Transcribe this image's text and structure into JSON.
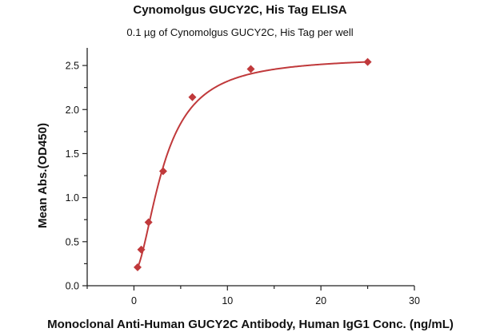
{
  "chart_data": {
    "type": "scatter",
    "title": "Cynomolgus GUCY2C, His Tag ELISA",
    "subtitle": "0.1 µg of Cynomolgus GUCY2C, His Tag per well",
    "xlabel": "Monoclonal Anti-Human GUCY2C Antibody, Human IgG1 Conc. (ng/mL)",
    "ylabel": "Mean Abs.(OD450)",
    "xlim": [
      -5,
      30
    ],
    "ylim": [
      0,
      2.7
    ],
    "xticks": [
      0,
      10,
      20,
      30
    ],
    "xtick_labels": [
      "0",
      "10",
      "20",
      "30"
    ],
    "yticks": [
      0,
      0.5,
      1,
      1.5,
      2,
      2.5
    ],
    "ytick_labels": [
      "0.0",
      "0.5",
      "1.0",
      "1.5",
      "2.0",
      "2.5"
    ],
    "grid": false,
    "color": "#c0393b",
    "series": [
      {
        "name": "Cynomolgus GUCY2C",
        "x": [
          0.39,
          0.78,
          1.56,
          3.125,
          6.25,
          12.5,
          25
        ],
        "y": [
          0.21,
          0.41,
          0.72,
          1.3,
          2.14,
          2.46,
          2.54
        ],
        "marker": "diamond",
        "fit": {
          "model": "4PL",
          "bottom": 0.15,
          "top": 2.6,
          "ec50": 3.2,
          "hill": 1.8
        }
      }
    ]
  }
}
